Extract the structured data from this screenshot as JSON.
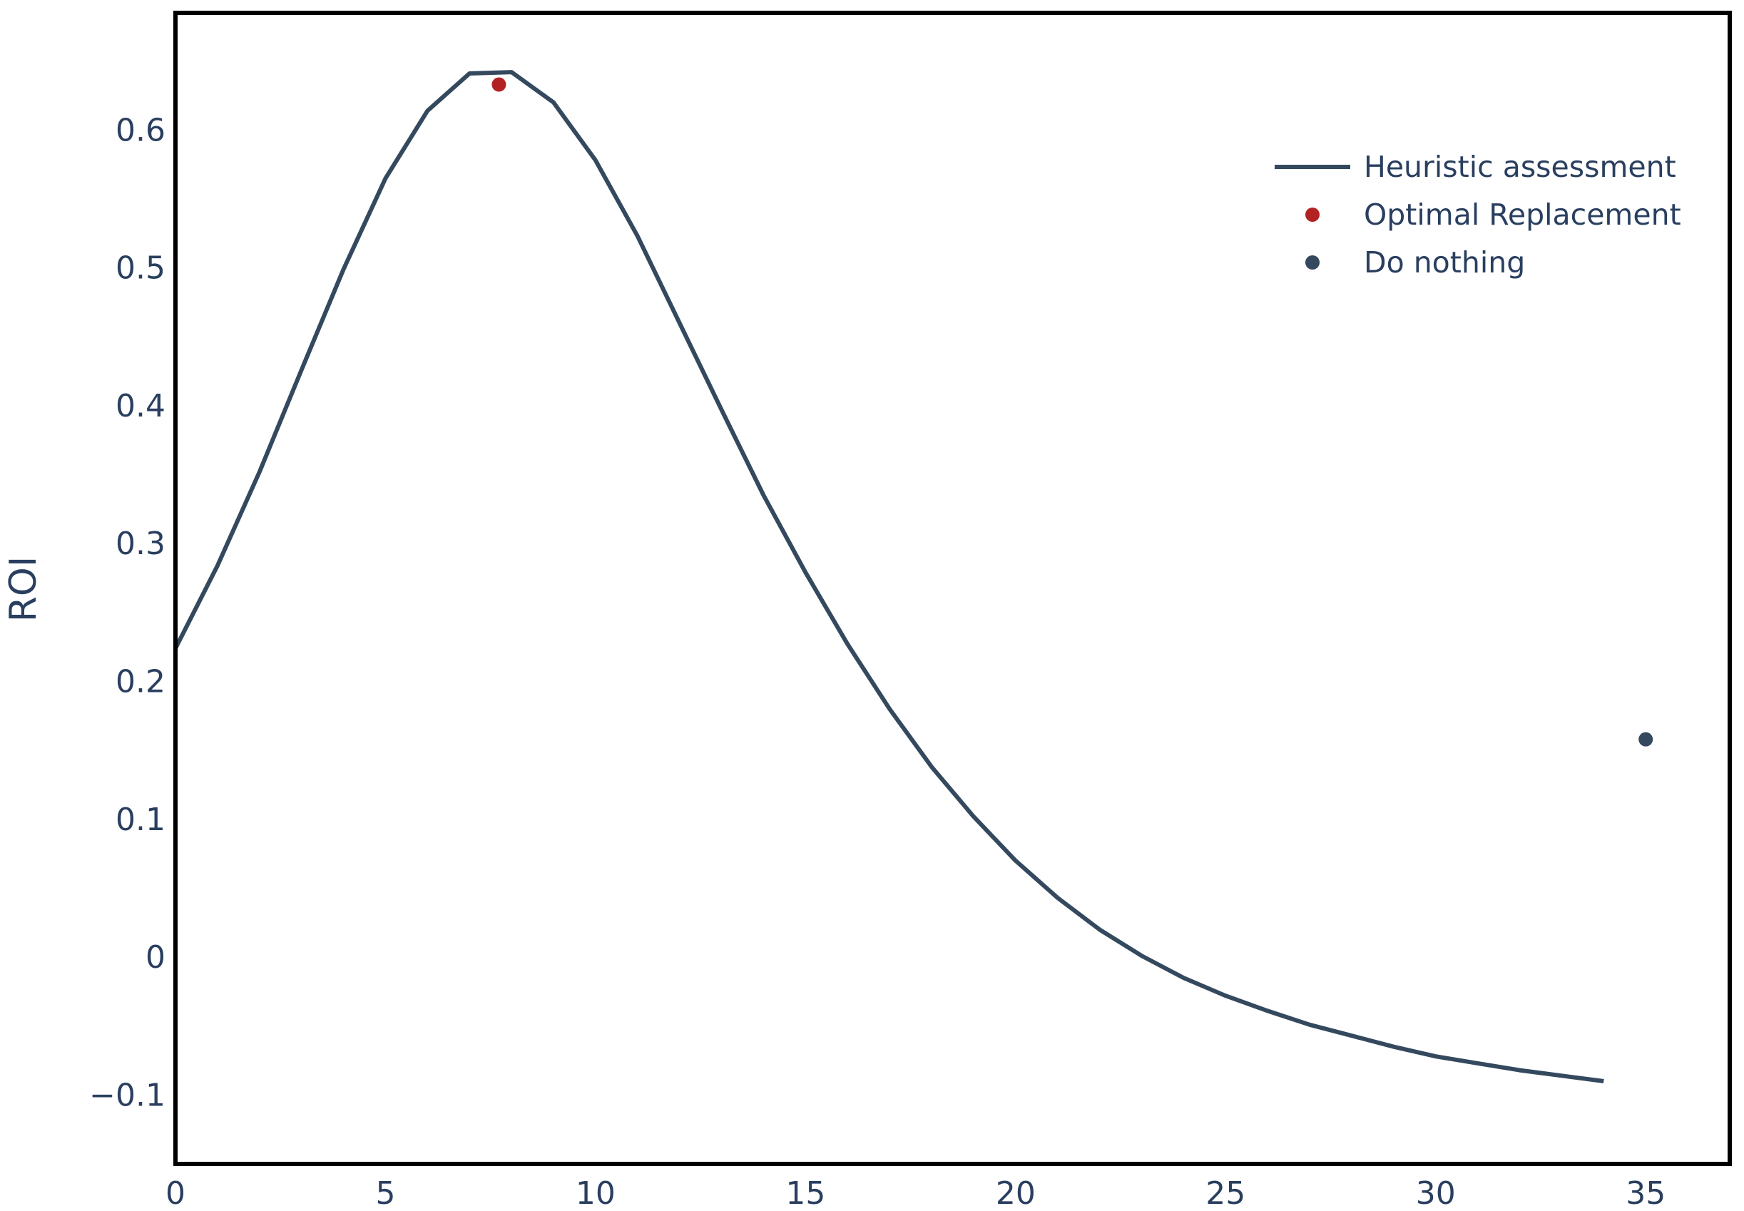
{
  "chart_data": {
    "type": "line",
    "title": "",
    "xlabel": "",
    "ylabel": "ROI",
    "xlim": [
      0,
      37
    ],
    "ylim": [
      -0.15,
      0.685
    ],
    "x_ticks": [
      0,
      5,
      10,
      15,
      20,
      25,
      30,
      35
    ],
    "x_tick_labels": [
      "0",
      "5",
      "10",
      "15",
      "20",
      "25",
      "30",
      "35"
    ],
    "y_ticks": [
      -0.1,
      0,
      0.1,
      0.2,
      0.3,
      0.4,
      0.5,
      0.6
    ],
    "y_tick_labels": [
      "−0.1",
      "0",
      "0.1",
      "0.2",
      "0.3",
      "0.4",
      "0.5",
      "0.6"
    ],
    "grid": false,
    "legend_position": "top-right",
    "series": [
      {
        "name": "Heuristic assessment",
        "mode": "line",
        "color": "#34495e",
        "x": [
          0,
          1,
          2,
          3,
          4,
          5,
          6,
          7,
          8,
          9,
          10,
          11,
          12,
          13,
          14,
          15,
          16,
          17,
          18,
          19,
          20,
          21,
          22,
          23,
          24,
          25,
          26,
          27,
          28,
          29,
          30,
          31,
          32,
          33,
          34
        ],
        "y": [
          0.224,
          0.284,
          0.352,
          0.426,
          0.499,
          0.565,
          0.614,
          0.641,
          0.642,
          0.62,
          0.578,
          0.523,
          0.46,
          0.397,
          0.335,
          0.279,
          0.227,
          0.18,
          0.138,
          0.102,
          0.07,
          0.043,
          0.02,
          0.001,
          -0.015,
          -0.028,
          -0.039,
          -0.049,
          -0.057,
          -0.065,
          -0.072,
          -0.077,
          -0.082,
          -0.086,
          -0.09
        ]
      },
      {
        "name": "Optimal Replacement",
        "mode": "marker",
        "color": "#b22222",
        "x": [
          7.7
        ],
        "y": [
          0.633
        ]
      },
      {
        "name": "Do nothing",
        "mode": "marker",
        "color": "#34495e",
        "x": [
          35
        ],
        "y": [
          0.158
        ]
      }
    ]
  }
}
